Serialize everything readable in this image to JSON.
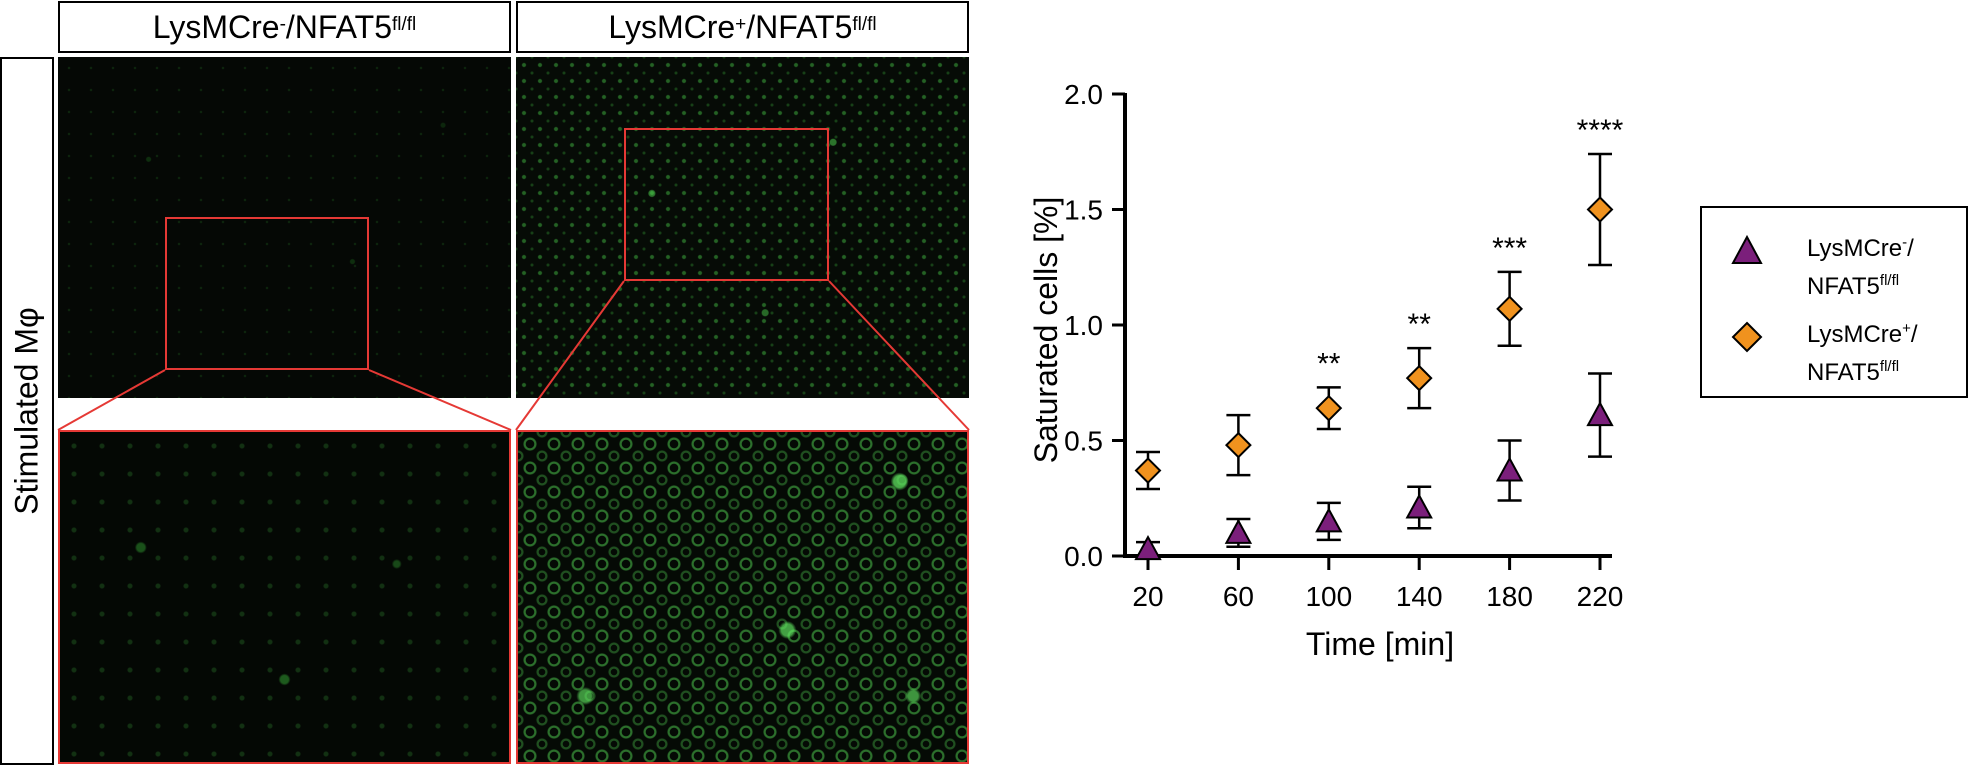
{
  "panels": {
    "col_headers": [
      {
        "base": "LysMCre",
        "sup1": "-",
        "mid": "/NFAT5",
        "sup2": "fl/fl"
      },
      {
        "base": "LysMCre",
        "sup1": "+",
        "mid": "/NFAT5",
        "sup2": "fl/fl"
      }
    ],
    "row_label": "Stimulated Mφ",
    "roi_color": "#e53935",
    "fluorescence_color": "#3cb43c"
  },
  "chart_data": {
    "type": "scatter",
    "xlabel": "Time [min]",
    "ylabel": "Saturated cells [%]",
    "x": [
      20,
      60,
      100,
      140,
      180,
      220
    ],
    "xlim": [
      20,
      220
    ],
    "ylim": [
      0,
      2.0
    ],
    "xticks": [
      "20",
      "60",
      "100",
      "140",
      "180",
      "220"
    ],
    "yticks": [
      "0.0",
      "0.5",
      "1.0",
      "1.5",
      "2.0"
    ],
    "grid": false,
    "legend_position": "right",
    "series": [
      {
        "name_base": "LysMCre",
        "name_sup1": "-",
        "name_mid": "/",
        "name_line2": "NFAT5",
        "name_sup2": "fl/fl",
        "marker": "triangle",
        "color": "#7b1f7b",
        "values": [
          0.03,
          0.1,
          0.15,
          0.21,
          0.37,
          0.61
        ],
        "err": [
          0.03,
          0.06,
          0.08,
          0.09,
          0.13,
          0.18
        ]
      },
      {
        "name_base": "LysMCre",
        "name_sup1": "+",
        "name_mid": "/",
        "name_line2": "NFAT5",
        "name_sup2": "fl/fl",
        "marker": "diamond",
        "color": "#f0921e",
        "values": [
          0.37,
          0.48,
          0.64,
          0.77,
          1.07,
          1.5
        ],
        "err": [
          0.08,
          0.13,
          0.09,
          0.13,
          0.16,
          0.24
        ]
      }
    ],
    "annotations": [
      "",
      "",
      "**",
      "**",
      "***",
      "****"
    ]
  }
}
